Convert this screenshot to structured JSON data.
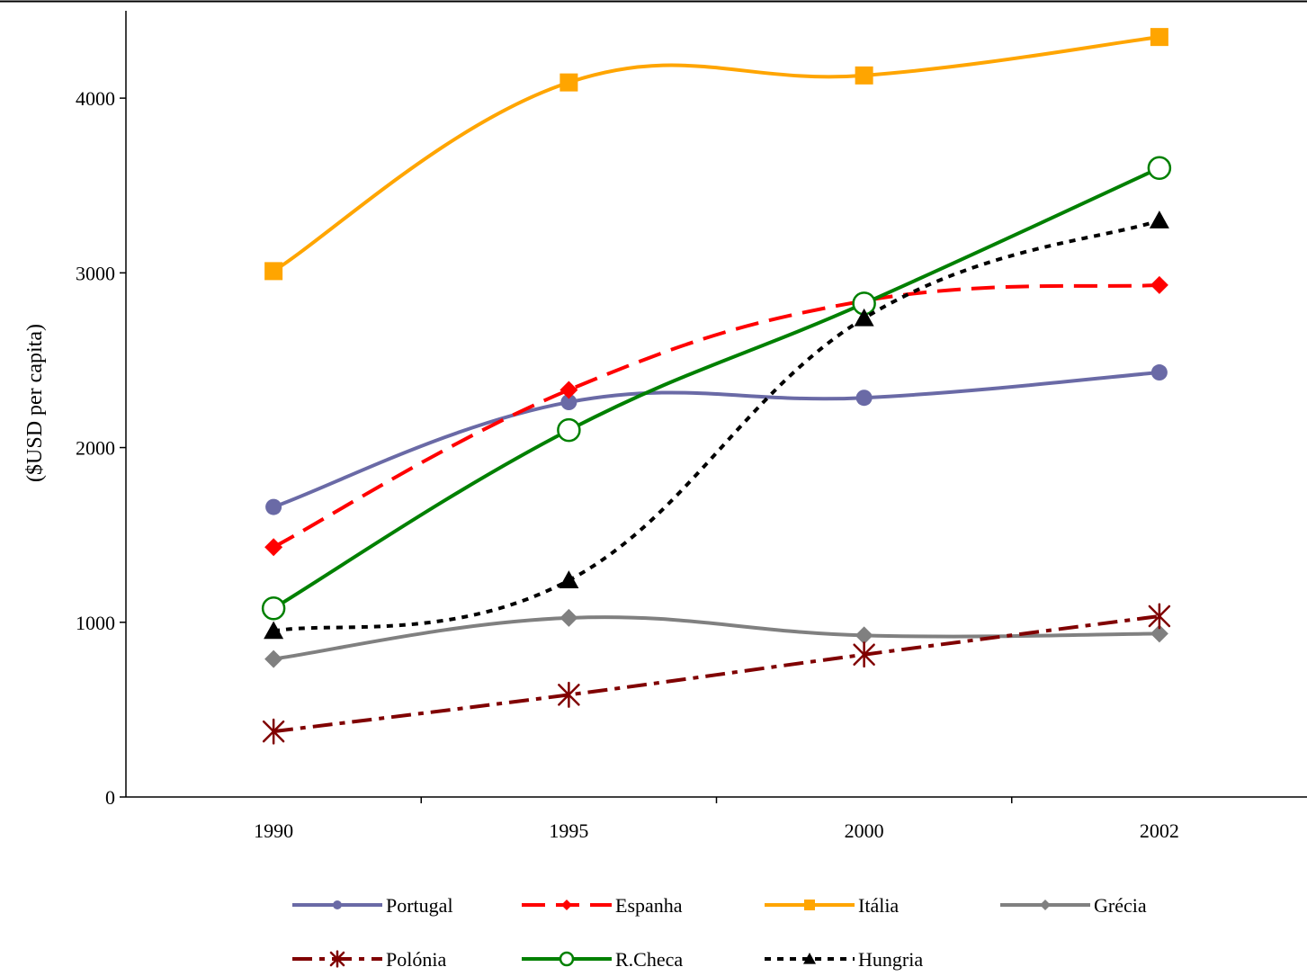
{
  "chart_data": {
    "type": "line",
    "title": "",
    "xlabel": "",
    "ylabel": "($USD per capita)",
    "categories": [
      "1990",
      "1995",
      "2000",
      "2002"
    ],
    "ylim": [
      0,
      4500
    ],
    "yticks": [
      0,
      1000,
      2000,
      3000,
      4000
    ],
    "grid": false,
    "legend_position": "bottom",
    "series": [
      {
        "name": "Portugal",
        "color": "#6A6AA6",
        "style": "solid",
        "marker": "circle",
        "values": [
          1660,
          2260,
          2285,
          2430
        ]
      },
      {
        "name": "Espanha",
        "color": "#FF0000",
        "style": "dashed",
        "marker": "diamond",
        "values": [
          1430,
          2330,
          2840,
          2930
        ]
      },
      {
        "name": "Itália",
        "color": "#FFA500",
        "style": "solid",
        "marker": "square",
        "values": [
          3010,
          4090,
          4130,
          4350
        ]
      },
      {
        "name": "Grécia",
        "color": "#808080",
        "style": "solid",
        "marker": "diamond",
        "values": [
          790,
          1025,
          925,
          935
        ]
      },
      {
        "name": "Polónia",
        "color": "#800000",
        "style": "dashdot",
        "marker": "asterisk",
        "values": [
          375,
          585,
          815,
          1035
        ]
      },
      {
        "name": "R.Checa",
        "color": "#008000",
        "style": "solid",
        "marker": "open-circle",
        "values": [
          1080,
          2100,
          2825,
          3600
        ]
      },
      {
        "name": "Hungria",
        "color": "#000000",
        "style": "dotted",
        "marker": "triangle",
        "values": [
          950,
          1240,
          2740,
          3300
        ]
      }
    ]
  }
}
